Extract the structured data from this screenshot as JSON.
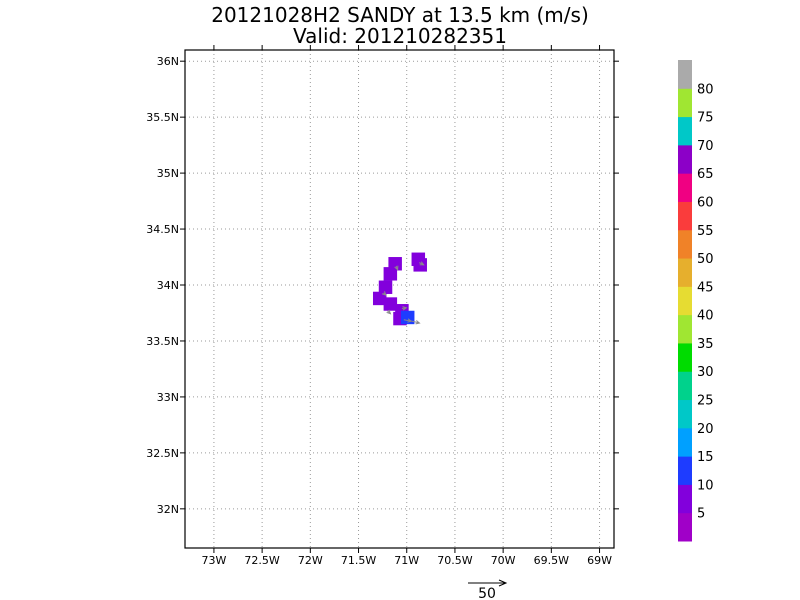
{
  "chart_data": {
    "type": "heatmap",
    "title": "20121028H2 SANDY at 13.5 km (m/s)",
    "subtitle": "Valid: 201210282351",
    "grid": true,
    "xlim": [
      -73.3,
      -68.85
    ],
    "ylim": [
      31.65,
      36.1
    ],
    "x_ticks": [
      {
        "value": -73.0,
        "label": "73W"
      },
      {
        "value": -72.5,
        "label": "72.5W"
      },
      {
        "value": -72.0,
        "label": "72W"
      },
      {
        "value": -71.5,
        "label": "71.5W"
      },
      {
        "value": -71.0,
        "label": "71W"
      },
      {
        "value": -70.5,
        "label": "70.5W"
      },
      {
        "value": -70.0,
        "label": "70W"
      },
      {
        "value": -69.5,
        "label": "69.5W"
      },
      {
        "value": -69.0,
        "label": "69W"
      }
    ],
    "y_ticks": [
      {
        "value": 32.0,
        "label": "32N"
      },
      {
        "value": 32.5,
        "label": "32.5N"
      },
      {
        "value": 33.0,
        "label": "33N"
      },
      {
        "value": 33.5,
        "label": "33.5N"
      },
      {
        "value": 34.0,
        "label": "34N"
      },
      {
        "value": 34.5,
        "label": "34.5N"
      },
      {
        "value": 35.0,
        "label": "35N"
      },
      {
        "value": 35.5,
        "label": "35.5N"
      },
      {
        "value": 36.0,
        "label": "36N"
      }
    ],
    "cells": [
      {
        "lon": -70.88,
        "lat": 34.23,
        "value": 7
      },
      {
        "lon": -70.86,
        "lat": 34.18,
        "value": 7
      },
      {
        "lon": -71.12,
        "lat": 34.19,
        "value": 7
      },
      {
        "lon": -71.17,
        "lat": 34.1,
        "value": 7
      },
      {
        "lon": -71.22,
        "lat": 33.98,
        "value": 7
      },
      {
        "lon": -71.28,
        "lat": 33.88,
        "value": 7
      },
      {
        "lon": -71.17,
        "lat": 33.83,
        "value": 7
      },
      {
        "lon": -71.05,
        "lat": 33.77,
        "value": 7
      },
      {
        "lon": -71.07,
        "lat": 33.7,
        "value": 7
      },
      {
        "lon": -70.99,
        "lat": 33.71,
        "value": 12
      }
    ],
    "vectors": [
      {
        "lon": -70.87,
        "lat": 34.2,
        "u": 6,
        "v": -3
      },
      {
        "lon": -71.11,
        "lat": 34.17,
        "u": 2,
        "v": -5
      },
      {
        "lon": -71.24,
        "lat": 33.93,
        "u": 3,
        "v": -3
      },
      {
        "lon": -71.2,
        "lat": 33.77,
        "u": 4,
        "v": -4
      },
      {
        "lon": -71.05,
        "lat": 33.79,
        "u": 6,
        "v": 1
      },
      {
        "lon": -71.03,
        "lat": 33.69,
        "u": 10,
        "v": -2
      },
      {
        "lon": -70.96,
        "lat": 33.68,
        "u": 12,
        "v": -3
      }
    ],
    "reference_vector": {
      "magnitude": 50,
      "label": "50"
    },
    "colorbar": {
      "range": [
        0,
        85
      ],
      "tick_labels": [
        "5",
        "10",
        "15",
        "20",
        "25",
        "30",
        "35",
        "40",
        "45",
        "50",
        "55",
        "60",
        "65",
        "70",
        "75",
        "80"
      ],
      "colors": [
        "#a000c8",
        "#8200dc",
        "#1e3cff",
        "#00a0ff",
        "#00c8c8",
        "#00d28c",
        "#00dc00",
        "#a0e632",
        "#e6dc32",
        "#e6af2d",
        "#f08228",
        "#fa3c3c",
        "#f00082",
        "#8c00c8",
        "#00c8c8",
        "#a0e632",
        "#aaaaaa"
      ]
    }
  }
}
